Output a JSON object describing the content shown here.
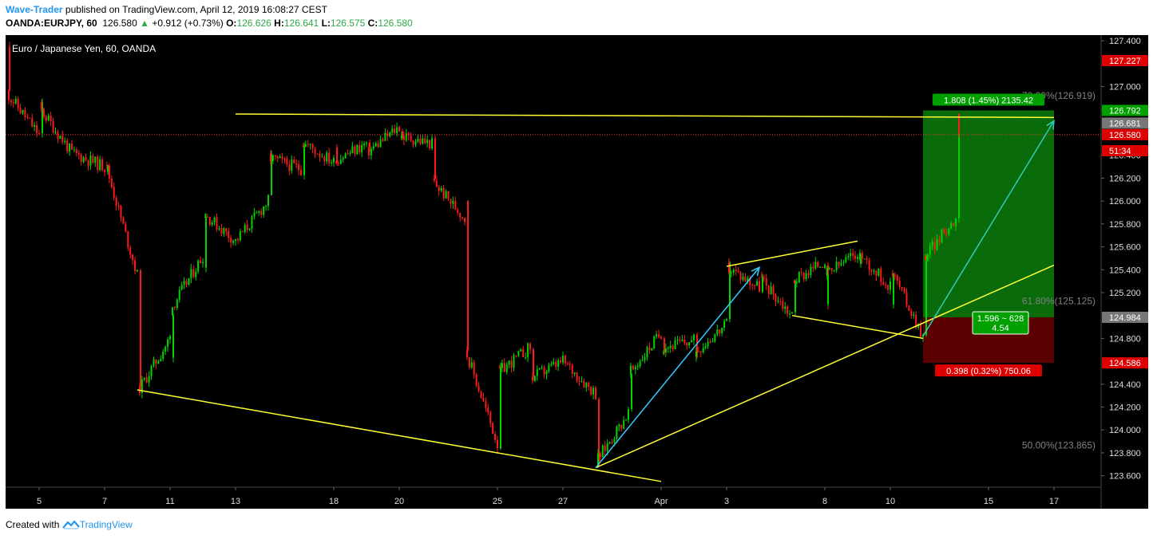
{
  "header": {
    "author": "Wave-Trader",
    "published_text": " published on TradingView.com, April 12, 2019 16:08:27 CEST",
    "symbol": "OANDA:EURJPY, 60",
    "last": "126.580",
    "change_arrow": "▲",
    "change": "+0.912 (+0.73%)",
    "o_label": "O:",
    "o_value": "126.626",
    "h_label": "H:",
    "h_value": "126.641",
    "l_label": "L:",
    "l_value": "126.575",
    "c_label": "C:",
    "c_value": "126.580"
  },
  "footer": {
    "created_text": "Created with",
    "brand": "TradingView",
    "logo_icon": "tradingview-logo-icon"
  },
  "colors": {
    "background": "#000000",
    "up": "#00d500",
    "down": "#ff1a1a",
    "trendline": "#ffff33",
    "arrow": "#33ccff",
    "arrow_target": "#33ccbb",
    "profit_zone": "#0a6b0a",
    "loss_zone": "#5a0000",
    "axis_text": "#dddddd",
    "fib_text": "#808080",
    "badge_green": "#00a000",
    "badge_red": "#dd0000",
    "badge_gray": "#777777"
  },
  "chart_data": {
    "type": "candlestick",
    "title": "Euro / Japanese Yen, 60, OANDA",
    "ylim": [
      123.55,
      127.5
    ],
    "y_ticks": [
      "127.400",
      "127.000",
      "126.800",
      "126.400",
      "126.200",
      "126.000",
      "125.800",
      "125.600",
      "125.400",
      "125.200",
      "124.800",
      "124.400",
      "124.200",
      "124.000",
      "123.800",
      "123.600"
    ],
    "x_ticks": [
      "5",
      "7",
      "11",
      "13",
      "18",
      "20",
      "25",
      "27",
      "Apr",
      "3",
      "8",
      "10",
      "15",
      "17"
    ],
    "price_path": [
      [
        "Mar 4",
        127.35
      ],
      [
        "Mar 4",
        126.95
      ],
      [
        "Mar 5",
        126.58
      ],
      [
        "Mar 5",
        126.82
      ],
      [
        "Mar 6",
        126.42
      ],
      [
        "Mar 7",
        126.3
      ],
      [
        "Mar 7",
        126.35
      ],
      [
        "Mar 8",
        125.35
      ],
      [
        "Mar 8",
        124.72
      ],
      [
        "Mar 8",
        124.33
      ],
      [
        "Mar 11",
        124.8
      ],
      [
        "Mar 11",
        124.62
      ],
      [
        "Mar 11",
        125.05
      ],
      [
        "Mar 12",
        125.52
      ],
      [
        "Mar 12",
        125.42
      ],
      [
        "Mar 12",
        125.9
      ],
      [
        "Mar 13",
        125.65
      ],
      [
        "Mar 14",
        126.0
      ],
      [
        "Mar 14",
        126.38
      ],
      [
        "Mar 15",
        126.28
      ],
      [
        "Mar 15",
        126.52
      ],
      [
        "Mar 18",
        126.34
      ],
      [
        "Mar 18",
        126.52
      ],
      [
        "Mar 18",
        126.35
      ],
      [
        "Mar 19",
        126.5
      ],
      [
        "Mar 19",
        126.42
      ],
      [
        "Mar 20",
        126.65
      ],
      [
        "Mar 20",
        126.57
      ],
      [
        "Mar 21",
        126.5
      ],
      [
        "Mar 21",
        126.18
      ],
      [
        "Mar 22",
        125.85
      ],
      [
        "Mar 22",
        126.03
      ],
      [
        "Mar 22",
        125.95
      ],
      [
        "Mar 22",
        124.72
      ],
      [
        "Mar 25",
        123.88
      ],
      [
        "Mar 25",
        124.42
      ],
      [
        "Mar 25",
        124.5
      ],
      [
        "Mar 26",
        124.72
      ],
      [
        "Mar 26",
        124.45
      ],
      [
        "Mar 27",
        124.6
      ],
      [
        "Mar 28",
        124.32
      ],
      [
        "Mar 28",
        123.72
      ],
      [
        "Mar 29",
        124.15
      ],
      [
        "Mar 29",
        124.48
      ],
      [
        "Apr 1",
        124.85
      ],
      [
        "Apr 1",
        124.72
      ],
      [
        "Apr 2",
        124.78
      ],
      [
        "Apr 2",
        124.68
      ],
      [
        "Apr 3",
        124.92
      ],
      [
        "Apr 3",
        125.42
      ],
      [
        "Apr 4",
        125.25
      ],
      [
        "Apr 4",
        125.33
      ],
      [
        "Apr 5",
        125.0
      ],
      [
        "Apr 5",
        125.3
      ],
      [
        "Apr 6",
        125.48
      ],
      [
        "Apr 8",
        125.3
      ],
      [
        "Apr 8",
        125.05
      ],
      [
        "Apr 8",
        125.35
      ],
      [
        "Apr 9",
        125.55
      ],
      [
        "Apr 9",
        125.4
      ],
      [
        "Apr 9",
        125.55
      ],
      [
        "Apr 10",
        125.25
      ],
      [
        "Apr 10",
        125.12
      ],
      [
        "Apr 10",
        125.3
      ],
      [
        "Apr 10",
        125.42
      ],
      [
        "Apr 11",
        124.82
      ],
      [
        "Apr 11",
        125.2
      ],
      [
        "Apr 11",
        125.5
      ],
      [
        "Apr 12",
        125.85
      ],
      [
        "Apr 12",
        126.35
      ],
      [
        "Apr 12",
        126.78
      ],
      [
        "Apr 12",
        126.58
      ]
    ],
    "horizontal_lines": [
      {
        "price": 126.58,
        "style": "dotted",
        "color": "#ff3030"
      }
    ],
    "trendlines": [
      {
        "from": [
          "Mar 8",
          124.35
        ],
        "to": [
          "Apr 1",
          123.55
        ]
      },
      {
        "from": [
          "Mar 13",
          126.76
        ],
        "to": [
          "Apr 17",
          126.73
        ]
      },
      {
        "from": [
          "Apr 3",
          125.43
        ],
        "to": [
          "Apr 9",
          125.65
        ]
      },
      {
        "from": [
          "Apr 5",
          125.0
        ],
        "to": [
          "Apr 11",
          124.8
        ]
      },
      {
        "from": [
          "Mar 28",
          123.67
        ],
        "to": [
          "Apr 17",
          125.44
        ]
      }
    ],
    "arrows": [
      {
        "from": [
          "Mar 28",
          123.67
        ],
        "to": [
          "Apr 4",
          125.42
        ]
      },
      {
        "from": [
          "Apr 11",
          124.82
        ],
        "to": [
          "Apr 17",
          126.7
        ]
      }
    ],
    "position": {
      "type": "long",
      "entry": 124.984,
      "target": 126.792,
      "stop": 124.586,
      "target_label": "1.808 (1.45%) 2135.42",
      "stop_label": "0.398 (0.32%) 750.06",
      "center_label_1": "1.596 ~ 628",
      "center_label_2": "4.54"
    },
    "fib_labels": [
      {
        "text": "78.60%(126.919)",
        "price": 126.919
      },
      {
        "text": "61.80%(125.125)",
        "price": 125.125
      },
      {
        "text": "50.00%(123.865)",
        "price": 123.865
      }
    ],
    "price_badges": [
      {
        "text": "127.227",
        "price": 127.227,
        "color": "red"
      },
      {
        "text": "126.792",
        "price": 126.792,
        "color": "green"
      },
      {
        "text": "126.681",
        "price": 126.681,
        "color": "gray"
      },
      {
        "text": "126.580",
        "price": 126.58,
        "color": "red"
      },
      {
        "text": "51:34",
        "price": 126.44,
        "color": "red"
      },
      {
        "text": "124.984",
        "price": 124.984,
        "color": "gray"
      },
      {
        "text": "124.586",
        "price": 124.586,
        "color": "red"
      }
    ]
  }
}
